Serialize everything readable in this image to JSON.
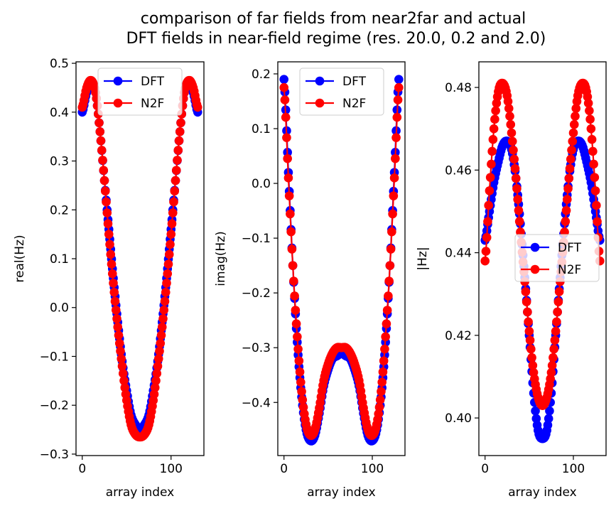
{
  "figure": {
    "title_line1": "comparison of far fields from near2far and actual",
    "title_line2": "DFT fields in near-field regime (res. 20.0, 0.2 and 2.0)"
  },
  "colors": {
    "DFT": "#0000ff",
    "N2F": "#ff0000",
    "axis": "#000000",
    "background": "#ffffff"
  },
  "chart_data": [
    {
      "type": "line",
      "xlabel": "array index",
      "ylabel": "real(Hz)",
      "xlim": [
        -7,
        137
      ],
      "ylim": [
        -0.303,
        0.503
      ],
      "xticks": [
        0,
        100
      ],
      "xtick_labels": [
        "0",
        "100"
      ],
      "yticks": [
        0.5,
        0.4,
        0.3,
        0.2,
        0.1,
        0.0,
        -0.1,
        -0.2,
        -0.3
      ],
      "ytick_labels": [
        "0.5",
        "0.4",
        "0.3",
        "0.2",
        "0.1",
        "0.0",
        "−0.1",
        "−0.2",
        "−0.3"
      ],
      "legend": [
        "DFT",
        "N2F"
      ],
      "legend_loc": "upper center",
      "points": 131,
      "series": [
        {
          "name": "DFT",
          "color": "#0000ff",
          "marker": "circle",
          "x": [
            0,
            5,
            10,
            15,
            20,
            25,
            30,
            35,
            40,
            45,
            50,
            55,
            60,
            65,
            70,
            75,
            80,
            85,
            90,
            95,
            100,
            105,
            110,
            115,
            120,
            125,
            130
          ],
          "y": [
            0.4,
            0.44,
            0.46,
            0.44,
            0.36,
            0.26,
            0.16,
            0.06,
            -0.03,
            -0.11,
            -0.17,
            -0.22,
            -0.24,
            -0.25,
            -0.24,
            -0.22,
            -0.17,
            -0.11,
            -0.03,
            0.06,
            0.16,
            0.26,
            0.36,
            0.44,
            0.46,
            0.44,
            0.4
          ]
        },
        {
          "name": "N2F",
          "color": "#ff0000",
          "marker": "circle",
          "x": [
            0,
            5,
            10,
            15,
            20,
            25,
            30,
            35,
            40,
            45,
            50,
            55,
            60,
            65,
            70,
            75,
            80,
            85,
            90,
            95,
            100,
            105,
            110,
            115,
            120,
            125,
            130
          ],
          "y": [
            0.41,
            0.45,
            0.465,
            0.44,
            0.36,
            0.26,
            0.15,
            0.05,
            -0.04,
            -0.12,
            -0.19,
            -0.24,
            -0.26,
            -0.265,
            -0.26,
            -0.24,
            -0.19,
            -0.12,
            -0.04,
            0.05,
            0.15,
            0.26,
            0.36,
            0.44,
            0.465,
            0.45,
            0.41
          ]
        }
      ]
    },
    {
      "type": "line",
      "xlabel": "array index",
      "ylabel": "imag(Hz)",
      "xlim": [
        -7,
        137
      ],
      "ylim": [
        -0.497,
        0.222
      ],
      "xticks": [
        0,
        100
      ],
      "xtick_labels": [
        "0",
        "100"
      ],
      "yticks": [
        0.2,
        0.1,
        0.0,
        -0.1,
        -0.2,
        -0.3,
        -0.4
      ],
      "ytick_labels": [
        "0.2",
        "0.1",
        "0.0",
        "−0.1",
        "−0.2",
        "−0.3",
        "−0.4"
      ],
      "legend": [
        "DFT",
        "N2F"
      ],
      "legend_loc": "upper center",
      "points": 131,
      "series": [
        {
          "name": "DFT",
          "color": "#0000ff",
          "marker": "circle",
          "x": [
            0,
            5,
            10,
            15,
            20,
            25,
            30,
            35,
            40,
            45,
            50,
            55,
            60,
            65,
            70,
            75,
            80,
            85,
            90,
            95,
            100,
            105,
            110,
            115,
            120,
            125,
            130
          ],
          "y": [
            0.19,
            0.02,
            -0.15,
            -0.29,
            -0.39,
            -0.45,
            -0.47,
            -0.46,
            -0.42,
            -0.37,
            -0.34,
            -0.32,
            -0.315,
            -0.31,
            -0.315,
            -0.32,
            -0.34,
            -0.37,
            -0.42,
            -0.46,
            -0.47,
            -0.45,
            -0.39,
            -0.29,
            -0.15,
            0.02,
            0.19
          ]
        },
        {
          "name": "N2F",
          "color": "#ff0000",
          "marker": "circle",
          "x": [
            0,
            5,
            10,
            15,
            20,
            25,
            30,
            35,
            40,
            45,
            50,
            55,
            60,
            65,
            70,
            75,
            80,
            85,
            90,
            95,
            100,
            105,
            110,
            115,
            120,
            125,
            130
          ],
          "y": [
            0.175,
            0.01,
            -0.15,
            -0.28,
            -0.38,
            -0.44,
            -0.46,
            -0.45,
            -0.41,
            -0.36,
            -0.33,
            -0.31,
            -0.3,
            -0.3,
            -0.3,
            -0.31,
            -0.33,
            -0.36,
            -0.41,
            -0.45,
            -0.46,
            -0.44,
            -0.38,
            -0.28,
            -0.15,
            0.01,
            0.175
          ]
        }
      ]
    },
    {
      "type": "line",
      "xlabel": "array index",
      "ylabel": "|Hz|",
      "xlim": [
        -7,
        137
      ],
      "ylim": [
        0.3909,
        0.4862
      ],
      "xticks": [
        0,
        100
      ],
      "xtick_labels": [
        "0",
        "100"
      ],
      "yticks": [
        0.48,
        0.46,
        0.44,
        0.42,
        0.4
      ],
      "ytick_labels": [
        "0.48",
        "0.46",
        "0.44",
        "0.42",
        "0.40"
      ],
      "legend": [
        "DFT",
        "N2F"
      ],
      "legend_loc": "center right",
      "points": 131,
      "series": [
        {
          "name": "DFT",
          "color": "#0000ff",
          "marker": "circle",
          "x": [
            0,
            5,
            10,
            15,
            20,
            25,
            30,
            35,
            40,
            45,
            50,
            55,
            60,
            65,
            70,
            75,
            80,
            85,
            90,
            95,
            100,
            105,
            110,
            115,
            120,
            125,
            130
          ],
          "y": [
            0.443,
            0.45,
            0.457,
            0.462,
            0.466,
            0.467,
            0.465,
            0.458,
            0.447,
            0.434,
            0.42,
            0.406,
            0.397,
            0.395,
            0.397,
            0.406,
            0.42,
            0.434,
            0.447,
            0.458,
            0.465,
            0.467,
            0.466,
            0.462,
            0.457,
            0.45,
            0.443
          ]
        },
        {
          "name": "N2F",
          "color": "#ff0000",
          "marker": "circle",
          "x": [
            0,
            5,
            10,
            15,
            20,
            25,
            30,
            35,
            40,
            45,
            50,
            55,
            60,
            65,
            70,
            75,
            80,
            85,
            90,
            95,
            100,
            105,
            110,
            115,
            120,
            125,
            130
          ],
          "y": [
            0.438,
            0.455,
            0.47,
            0.479,
            0.481,
            0.478,
            0.469,
            0.458,
            0.445,
            0.433,
            0.421,
            0.411,
            0.405,
            0.403,
            0.405,
            0.411,
            0.421,
            0.433,
            0.445,
            0.458,
            0.469,
            0.478,
            0.481,
            0.479,
            0.47,
            0.455,
            0.438
          ]
        }
      ]
    }
  ]
}
